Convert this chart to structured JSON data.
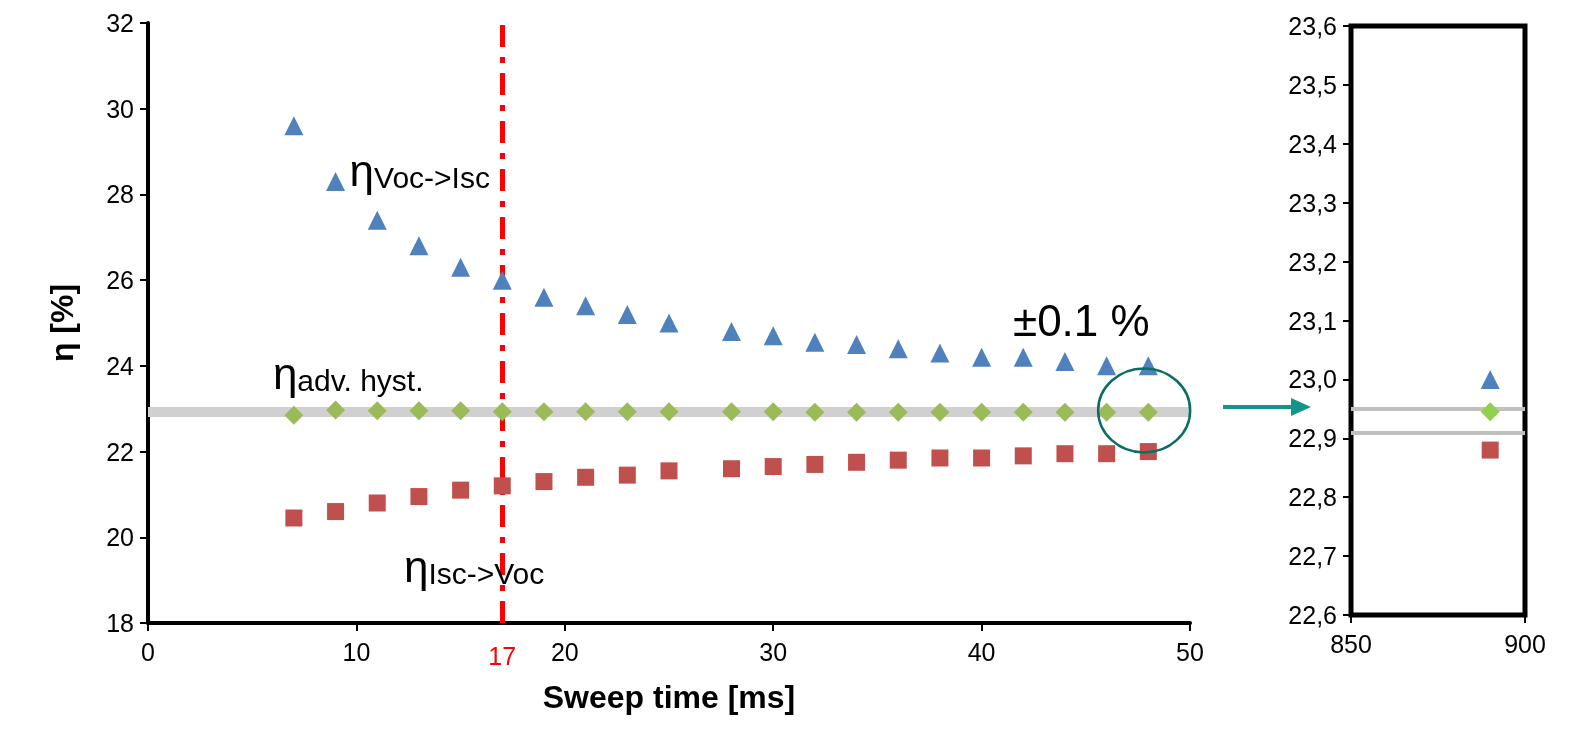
{
  "chart_data": [
    {
      "type": "scatter",
      "xlabel": "Sweep time [ms]",
      "ylabel": "η [%]",
      "xlim": [
        0,
        50
      ],
      "xticks": [
        0,
        10,
        20,
        30,
        40,
        50
      ],
      "ylim": [
        18,
        32
      ],
      "yticks": [
        18,
        20,
        22,
        24,
        26,
        28,
        30,
        32
      ],
      "x": [
        7,
        9,
        11,
        13,
        15,
        17,
        19,
        21,
        23,
        25,
        28,
        30,
        32,
        34,
        36,
        38,
        40,
        42,
        44,
        46,
        48
      ],
      "series": [
        {
          "name": "η$_{Voc->Isc}$",
          "color": "#4f81bd",
          "marker": "triangle",
          "values": [
            29.6,
            28.3,
            27.4,
            26.8,
            26.3,
            26.0,
            25.6,
            25.4,
            25.2,
            25.0,
            24.8,
            24.7,
            24.55,
            24.5,
            24.4,
            24.3,
            24.2,
            24.2,
            24.1,
            24.0,
            24.0
          ]
        },
        {
          "name": "η$_{adv. hyst.}$",
          "color": "#9bbb59",
          "marker": "diamond",
          "values": [
            22.85,
            22.97,
            22.95,
            22.95,
            22.95,
            22.93,
            22.93,
            22.93,
            22.93,
            22.93,
            22.93,
            22.93,
            22.92,
            22.92,
            22.92,
            22.92,
            22.92,
            22.92,
            22.92,
            22.92,
            22.92
          ]
        },
        {
          "name": "η$_{Isc->Voc}$",
          "color": "#c0504d",
          "marker": "square",
          "values": [
            20.45,
            20.6,
            20.8,
            20.95,
            21.1,
            21.2,
            21.3,
            21.4,
            21.45,
            21.55,
            21.6,
            21.65,
            21.7,
            21.75,
            21.8,
            21.85,
            21.85,
            21.9,
            21.95,
            21.95,
            22.0
          ]
        }
      ],
      "ref_lines": [
        {
          "axis": "y",
          "value": 22.93,
          "label": null,
          "color": "#d0d0d0"
        },
        {
          "axis": "x",
          "value": 17,
          "label": "17",
          "color": "#ff0000",
          "line_style": "dashed"
        }
      ],
      "annotations": [
        "±0.1 %"
      ]
    },
    {
      "type": "scatter",
      "xlim": [
        850,
        900
      ],
      "xticks": [
        850,
        900
      ],
      "ylim": [
        22.6,
        23.6
      ],
      "yticks": [
        {
          "value": 22.6,
          "label": "22,6"
        },
        {
          "value": 22.7,
          "label": "22,7"
        },
        {
          "value": 22.8,
          "label": "22,8"
        },
        {
          "value": 22.9,
          "label": "22,9"
        },
        {
          "value": 23.0,
          "label": "23,0"
        },
        {
          "value": 23.1,
          "label": "23,1"
        },
        {
          "value": 23.2,
          "label": "23,2"
        },
        {
          "value": 23.3,
          "label": "23,3"
        },
        {
          "value": 23.4,
          "label": "23,4"
        },
        {
          "value": 23.5,
          "label": "23,5"
        },
        {
          "value": 23.6,
          "label": "23,6"
        }
      ],
      "x": [
        890
      ],
      "series": [
        {
          "color": "#4f81bd",
          "marker": "triangle",
          "values": [
            23.0
          ]
        },
        {
          "color": "#92d050",
          "marker": "diamond",
          "values": [
            22.945
          ]
        },
        {
          "color": "#c0504d",
          "marker": "square",
          "values": [
            22.88
          ]
        }
      ],
      "ref_lines": [
        {
          "axis": "y",
          "value": 22.953,
          "label": null,
          "color": "#c0c0c0"
        },
        {
          "axis": "y",
          "value": 22.91,
          "label": null,
          "color": "#c0c0c0"
        }
      ]
    }
  ]
}
